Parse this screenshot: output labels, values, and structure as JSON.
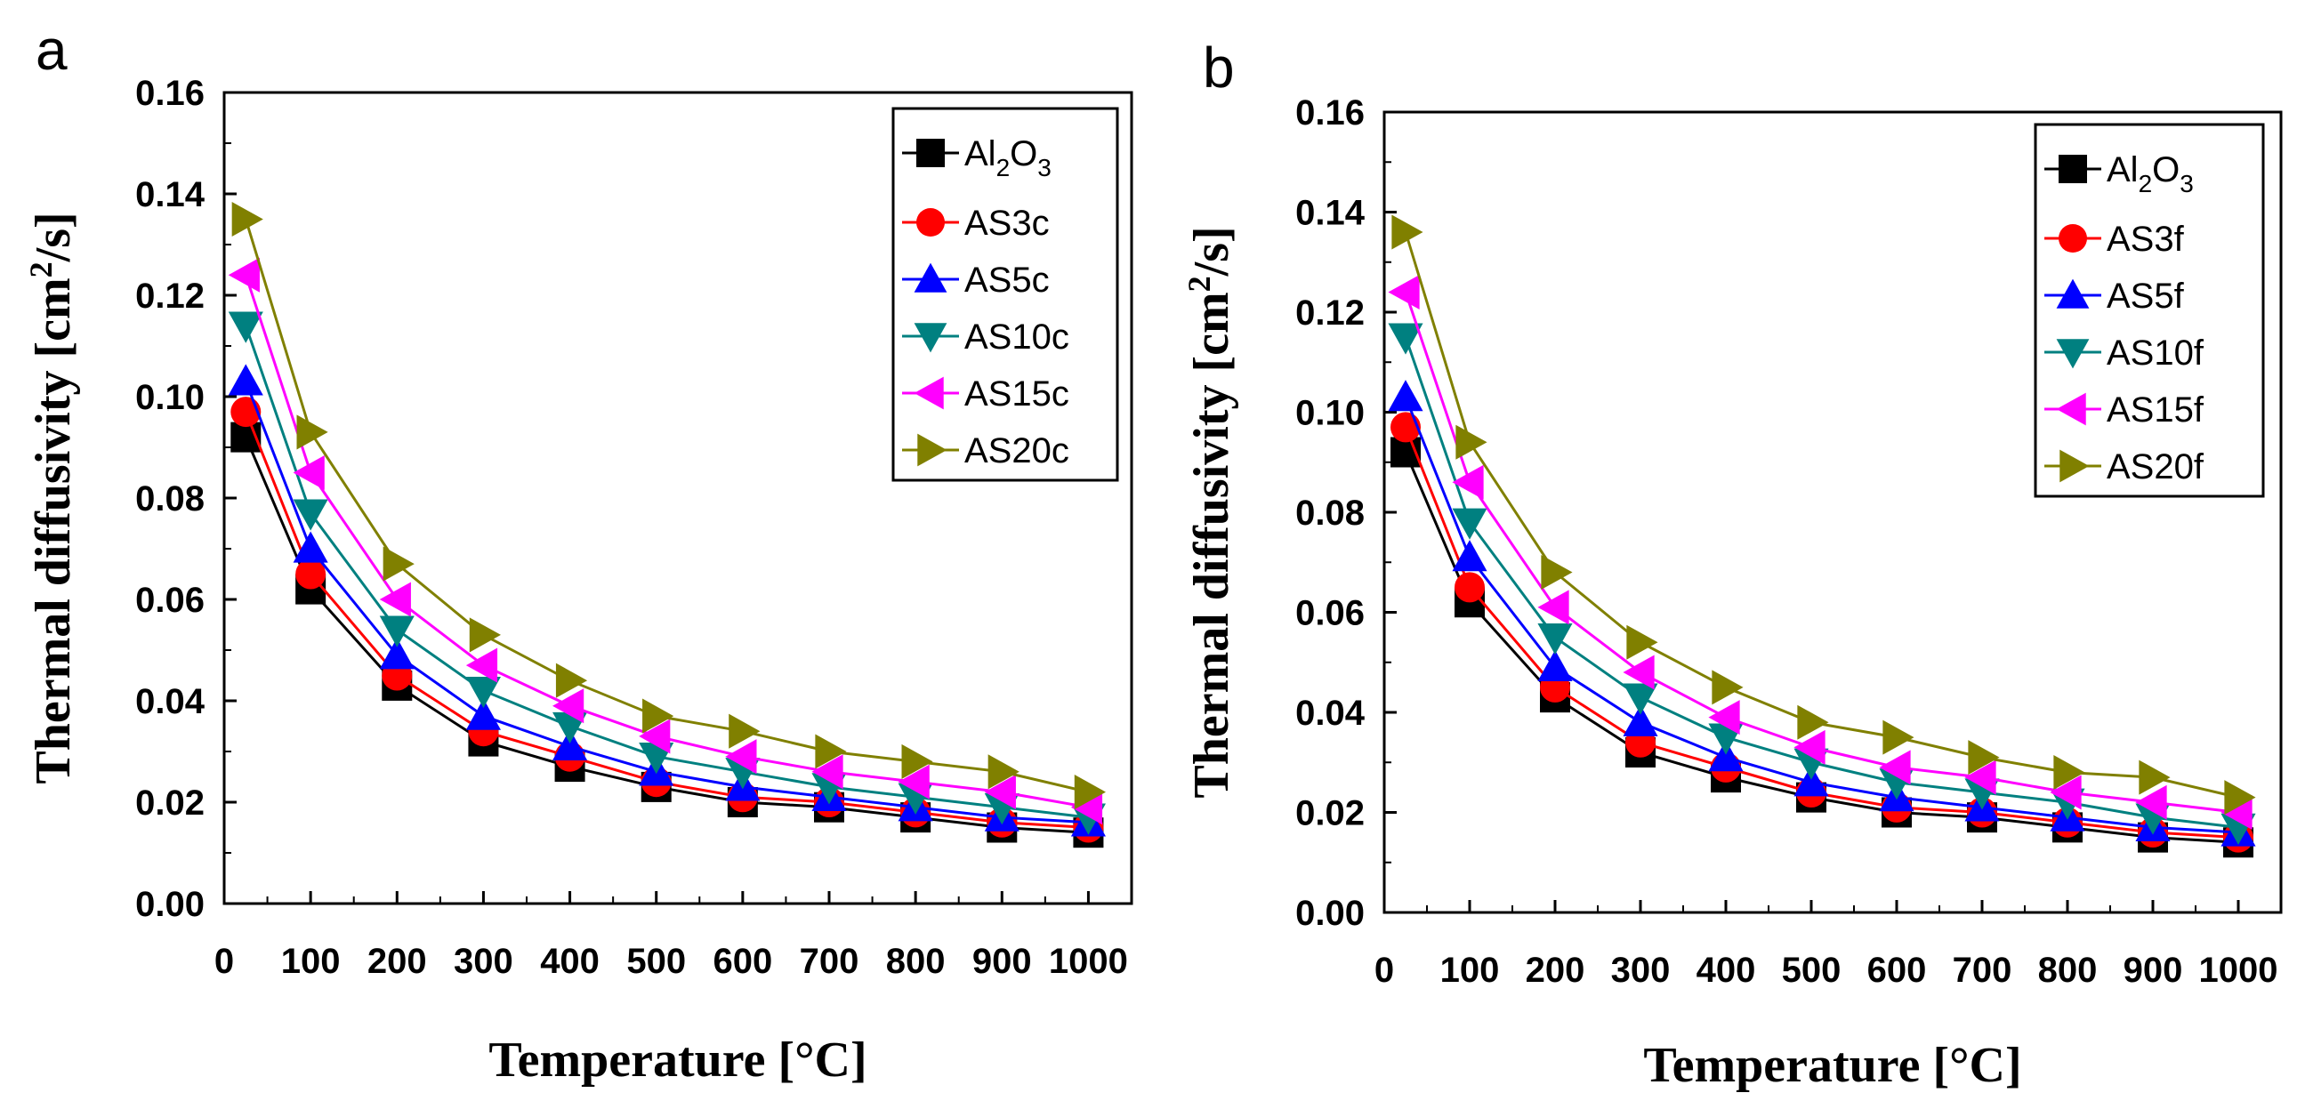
{
  "chart_data": [
    {
      "panel": "a",
      "type": "line",
      "xlabel": "Temperature [°C]",
      "ylabel_main": "Thermal diffusivity [cm",
      "ylabel_sup": "2",
      "ylabel_tail": "/s]",
      "xlim": [
        0,
        1050
      ],
      "ylim": [
        0,
        0.16
      ],
      "xticks": [
        0,
        100,
        200,
        300,
        400,
        500,
        600,
        700,
        800,
        900,
        1000
      ],
      "yticks": [
        0.0,
        0.02,
        0.04,
        0.06,
        0.08,
        0.1,
        0.12,
        0.14,
        0.16
      ],
      "xtick_labels": [
        "0",
        "100",
        "200",
        "300",
        "400",
        "500",
        "600",
        "700",
        "800",
        "900",
        "1000"
      ],
      "ytick_labels": [
        "0.00",
        "0.02",
        "0.04",
        "0.06",
        "0.08",
        "0.10",
        "0.12",
        "0.14",
        "0.16"
      ],
      "x": [
        25,
        100,
        200,
        300,
        400,
        500,
        600,
        700,
        800,
        900,
        1000
      ],
      "legend_position": "top-right",
      "series": [
        {
          "name": "Al2O3",
          "label_parts": [
            "Al",
            "2",
            "O",
            "3"
          ],
          "marker": "square",
          "color": "#000000",
          "values": [
            0.092,
            0.062,
            0.043,
            0.032,
            0.027,
            0.023,
            0.02,
            0.019,
            0.017,
            0.015,
            0.014
          ]
        },
        {
          "name": "AS3c",
          "marker": "circle",
          "color": "#ff0000",
          "values": [
            0.097,
            0.065,
            0.045,
            0.034,
            0.029,
            0.024,
            0.021,
            0.02,
            0.018,
            0.016,
            0.015
          ]
        },
        {
          "name": "AS5c",
          "marker": "triangle-up",
          "color": "#0000ff",
          "values": [
            0.103,
            0.07,
            0.049,
            0.037,
            0.031,
            0.026,
            0.023,
            0.021,
            0.019,
            0.017,
            0.016
          ]
        },
        {
          "name": "AS10c",
          "marker": "triangle-down",
          "color": "#008080",
          "values": [
            0.114,
            0.077,
            0.054,
            0.042,
            0.035,
            0.029,
            0.026,
            0.023,
            0.021,
            0.019,
            0.017
          ]
        },
        {
          "name": "AS15c",
          "marker": "triangle-left",
          "color": "#ff00ff",
          "values": [
            0.124,
            0.085,
            0.06,
            0.047,
            0.039,
            0.033,
            0.029,
            0.026,
            0.024,
            0.022,
            0.019
          ]
        },
        {
          "name": "AS20c",
          "marker": "triangle-right",
          "color": "#808000",
          "values": [
            0.135,
            0.093,
            0.067,
            0.053,
            0.044,
            0.037,
            0.034,
            0.03,
            0.028,
            0.026,
            0.022
          ]
        }
      ]
    },
    {
      "panel": "b",
      "type": "line",
      "xlabel": "Temperature [°C]",
      "ylabel_main": "Thermal diffusivity [cm",
      "ylabel_sup": "2",
      "ylabel_tail": "/s]",
      "xlim": [
        0,
        1050
      ],
      "ylim": [
        0,
        0.16
      ],
      "xticks": [
        0,
        100,
        200,
        300,
        400,
        500,
        600,
        700,
        800,
        900,
        1000
      ],
      "yticks": [
        0.0,
        0.02,
        0.04,
        0.06,
        0.08,
        0.1,
        0.12,
        0.14,
        0.16
      ],
      "xtick_labels": [
        "0",
        "100",
        "200",
        "300",
        "400",
        "500",
        "600",
        "700",
        "800",
        "900",
        "1000"
      ],
      "ytick_labels": [
        "0.00",
        "0.02",
        "0.04",
        "0.06",
        "0.08",
        "0.10",
        "0.12",
        "0.14",
        "0.16"
      ],
      "x": [
        25,
        100,
        200,
        300,
        400,
        500,
        600,
        700,
        800,
        900,
        1000
      ],
      "legend_position": "top-right",
      "series": [
        {
          "name": "Al2O3",
          "label_parts": [
            "Al",
            "2",
            "O",
            "3"
          ],
          "marker": "square",
          "color": "#000000",
          "values": [
            0.092,
            0.062,
            0.043,
            0.032,
            0.027,
            0.023,
            0.02,
            0.019,
            0.017,
            0.015,
            0.014
          ]
        },
        {
          "name": "AS3f",
          "marker": "circle",
          "color": "#ff0000",
          "values": [
            0.097,
            0.065,
            0.045,
            0.034,
            0.029,
            0.024,
            0.021,
            0.02,
            0.018,
            0.016,
            0.015
          ]
        },
        {
          "name": "AS5f",
          "marker": "triangle-up",
          "color": "#0000ff",
          "values": [
            0.103,
            0.071,
            0.049,
            0.038,
            0.031,
            0.026,
            0.023,
            0.021,
            0.019,
            0.017,
            0.016
          ]
        },
        {
          "name": "AS10f",
          "marker": "triangle-down",
          "color": "#008080",
          "values": [
            0.115,
            0.078,
            0.055,
            0.043,
            0.035,
            0.03,
            0.026,
            0.024,
            0.022,
            0.019,
            0.017
          ]
        },
        {
          "name": "AS15f",
          "marker": "triangle-left",
          "color": "#ff00ff",
          "values": [
            0.124,
            0.086,
            0.061,
            0.048,
            0.039,
            0.033,
            0.029,
            0.027,
            0.024,
            0.022,
            0.02
          ]
        },
        {
          "name": "AS20f",
          "marker": "triangle-right",
          "color": "#808000",
          "values": [
            0.136,
            0.094,
            0.068,
            0.054,
            0.045,
            0.038,
            0.035,
            0.031,
            0.028,
            0.027,
            0.023
          ]
        }
      ]
    }
  ]
}
